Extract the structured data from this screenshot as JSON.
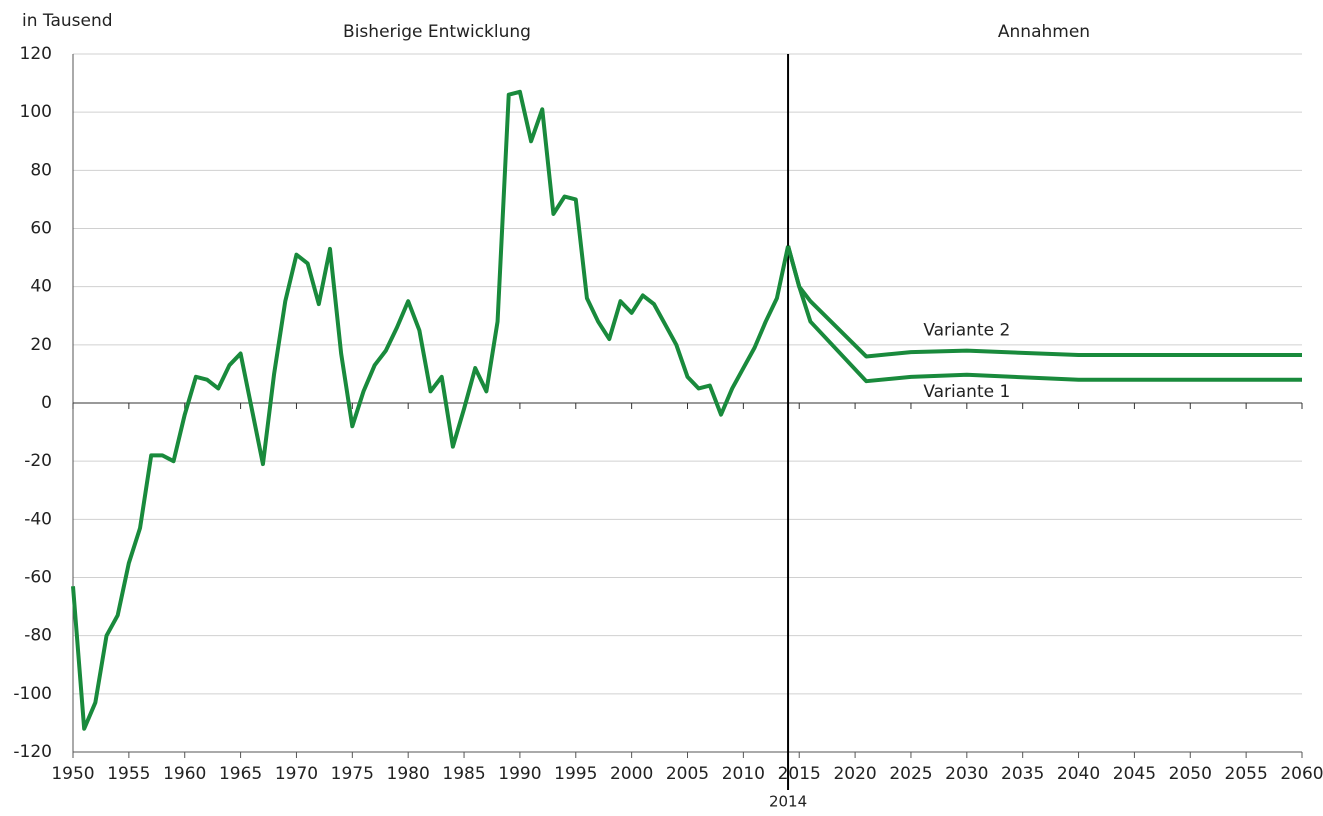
{
  "chart_data": {
    "type": "line",
    "y_unit_label": "in Tausend",
    "annotations": [
      "Bisherige Entwicklung",
      "Annahmen"
    ],
    "marker_x": 2014,
    "xlim": [
      1950,
      2060
    ],
    "xticks": [
      1950,
      1955,
      1960,
      1965,
      1970,
      1975,
      1980,
      1985,
      1990,
      1995,
      2000,
      2005,
      2010,
      2015,
      2020,
      2025,
      2030,
      2035,
      2040,
      2045,
      2050,
      2055,
      2060
    ],
    "ylim": [
      -120,
      120
    ],
    "yticks": [
      -120,
      -100,
      -80,
      -60,
      -40,
      -20,
      0,
      20,
      40,
      60,
      80,
      100,
      120
    ],
    "grid": true,
    "series": [
      {
        "color": "#198a3c",
        "x": [
          1950,
          1951,
          1952,
          1953,
          1954,
          1955,
          1956,
          1957,
          1958,
          1959,
          1960,
          1961,
          1962,
          1963,
          1964,
          1965,
          1966,
          1967,
          1968,
          1969,
          1970,
          1971,
          1972,
          1973,
          1974,
          1975,
          1976,
          1977,
          1978,
          1979,
          1980,
          1981,
          1982,
          1983,
          1984,
          1985,
          1986,
          1987,
          1988,
          1989,
          1990,
          1991,
          1992,
          1993,
          1994,
          1995,
          1996,
          1997,
          1998,
          1999,
          2000,
          2001,
          2002,
          2003,
          2004,
          2005,
          2006,
          2007,
          2008,
          2009,
          2010,
          2011,
          2012,
          2013,
          2014
        ],
        "values": [
          -63,
          -112,
          -103,
          -80,
          -73,
          -55,
          -43,
          -18,
          -18,
          -20,
          -4,
          9,
          8,
          5,
          13,
          17,
          -2,
          -21,
          10,
          35,
          51,
          48,
          34,
          53,
          17,
          -8,
          4,
          13,
          18,
          26,
          35,
          25,
          4,
          9,
          -15,
          -2,
          12,
          4,
          28,
          106,
          107,
          90,
          101,
          65,
          71,
          70,
          36,
          28,
          22,
          35,
          31,
          37,
          34,
          27,
          20,
          9,
          5,
          6,
          -4,
          5,
          12,
          19,
          28,
          36,
          54
        ]
      },
      {
        "name": "Variante 1",
        "color": "#198a3c",
        "x": [
          2014,
          2015,
          2016,
          2021,
          2025,
          2030,
          2040,
          2060
        ],
        "values": [
          54,
          40,
          28,
          7.5,
          9,
          9.7,
          8,
          8
        ]
      },
      {
        "name": "Variante 2",
        "color": "#198a3c",
        "x": [
          2014,
          2015,
          2016,
          2021,
          2025,
          2030,
          2040,
          2060
        ],
        "values": [
          54,
          40,
          35,
          16,
          17.5,
          18,
          16.5,
          16.5
        ]
      }
    ]
  }
}
